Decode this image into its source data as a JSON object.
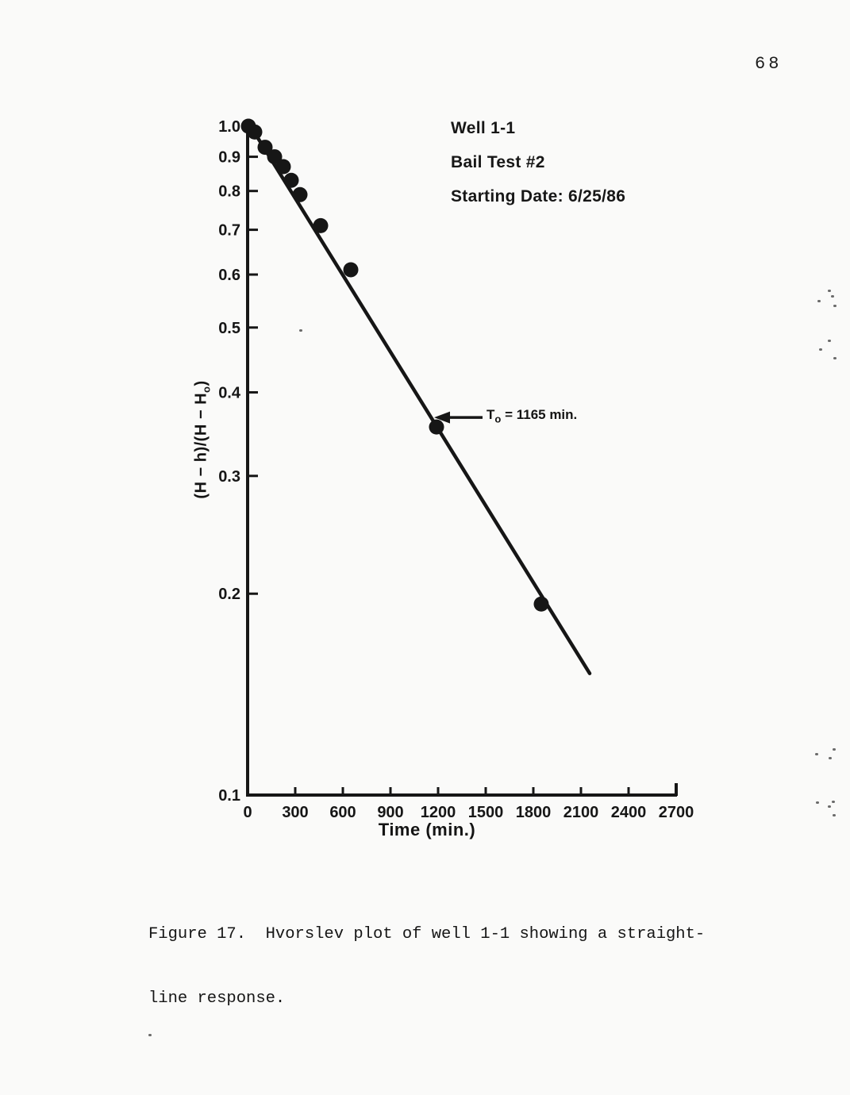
{
  "page": {
    "number": "68"
  },
  "chart_data": {
    "type": "scatter",
    "title": "",
    "legend_lines": [
      "Well 1-1",
      "Bail Test #2",
      "Starting Date: 6/25/86"
    ],
    "xlabel": "Time (min.)",
    "ylabel": {
      "pre": "(H − h)/(H − H",
      "sub": "o",
      "post": ")"
    },
    "x_ticks": [
      "0",
      "300",
      "600",
      "900",
      "1200",
      "1500",
      "1800",
      "2100",
      "2400",
      "2700"
    ],
    "y_ticks": [
      "1.0",
      "0.9",
      "0.8",
      "0.7",
      "0.6",
      "0.5",
      "0.4",
      "0.3",
      "0.2",
      "0.1"
    ],
    "y_scale": "log",
    "xlim": [
      0,
      2700
    ],
    "ylim": [
      0.1,
      1.0
    ],
    "grid": false,
    "points": [
      {
        "t": 5,
        "v": 1.0
      },
      {
        "t": 45,
        "v": 0.98
      },
      {
        "t": 110,
        "v": 0.93
      },
      {
        "t": 170,
        "v": 0.9
      },
      {
        "t": 225,
        "v": 0.87
      },
      {
        "t": 275,
        "v": 0.83
      },
      {
        "t": 330,
        "v": 0.79
      },
      {
        "t": 460,
        "v": 0.71
      },
      {
        "t": 650,
        "v": 0.61
      },
      {
        "t": 1190,
        "v": 0.355
      },
      {
        "t": 1850,
        "v": 0.193
      }
    ],
    "fit_line": {
      "t_start": 30,
      "v_start": 0.99,
      "t_end": 2155,
      "v_end": 0.152
    },
    "annotation": {
      "label_pre": "T",
      "label_sub": "o",
      "label_post": " = 1165 min.",
      "t": 1165
    }
  },
  "caption": {
    "line1": "Figure 17.  Hvorslev plot of well 1-1 showing a straight-",
    "line2": "line response."
  },
  "colors": {
    "ink": "#161616",
    "background": "#fafaf9"
  },
  "artifacts": {
    "speckles": [
      [
        1043,
        365
      ],
      [
        1047,
        372
      ],
      [
        1030,
        378
      ],
      [
        1050,
        384
      ],
      [
        1043,
        428
      ],
      [
        1032,
        439
      ],
      [
        1050,
        450
      ],
      [
        1049,
        943
      ],
      [
        1027,
        949
      ],
      [
        1044,
        954
      ],
      [
        1028,
        1010
      ],
      [
        1048,
        1009
      ],
      [
        1043,
        1015
      ],
      [
        1049,
        1026
      ],
      [
        377,
        415
      ],
      [
        187,
        1303
      ]
    ]
  }
}
